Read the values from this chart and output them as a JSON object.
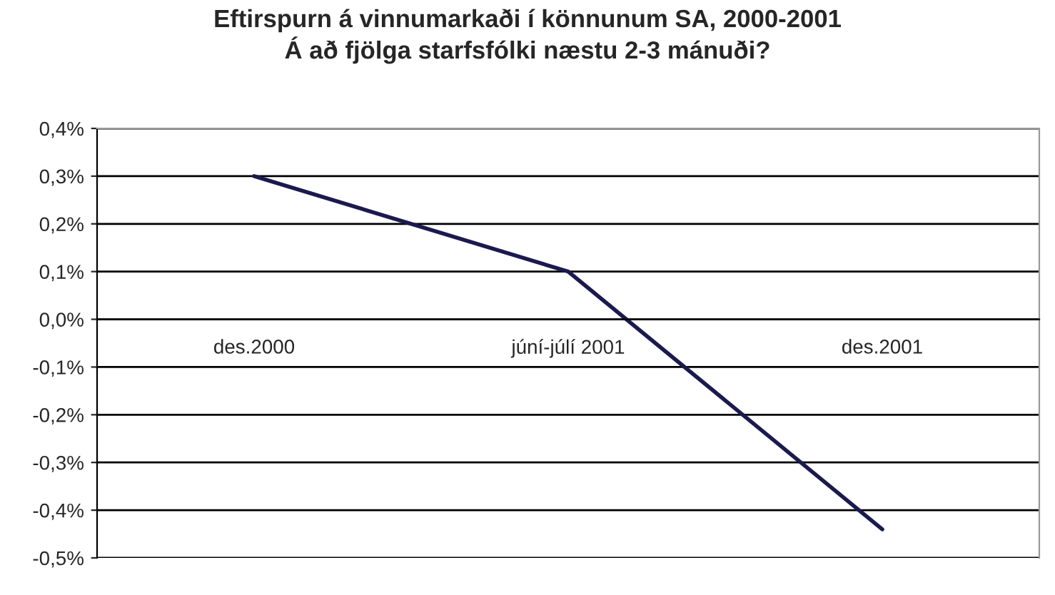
{
  "chart_data": {
    "type": "line",
    "title": "Eftirspurn á vinnumarkaði í könnunum SA, 2000-2001\nÁ að fjölga starfsfólki næstu 2-3 mánuði?",
    "categories": [
      "des.2000",
      "júní-júlí 2001",
      "des.2001"
    ],
    "series": [
      {
        "color": "#1a1a4e",
        "values": [
          0.3,
          0.1,
          -0.44
        ]
      }
    ],
    "ylim": [
      -0.5,
      0.4
    ],
    "yticks": [
      {
        "value": -0.5,
        "label": "-0,5%"
      },
      {
        "value": -0.4,
        "label": "-0,4%"
      },
      {
        "value": -0.3,
        "label": "-0,3%"
      },
      {
        "value": -0.2,
        "label": "-0,2%"
      },
      {
        "value": -0.1,
        "label": "-0,1%"
      },
      {
        "value": 0,
        "label": "0,0%"
      },
      {
        "value": 0.1,
        "label": "0,1%"
      },
      {
        "value": 0.2,
        "label": "0,2%"
      },
      {
        "value": 0.3,
        "label": "0,3%"
      },
      {
        "value": 0.4,
        "label": "0,4%"
      }
    ],
    "grid": "y",
    "marker": "none",
    "line_style": "solid",
    "legend": false
  }
}
